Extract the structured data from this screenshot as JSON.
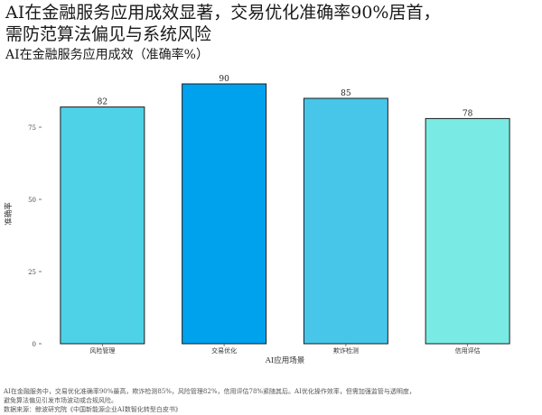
{
  "title": "AI在金融服务应用成效显著，交易优化准确率90%居首，\n需防范算法偏见与系统风险",
  "subtitle": "AI在金融服务应用成效（准确率%）",
  "chart_data": {
    "type": "bar",
    "categories": [
      "风险管理",
      "交易优化",
      "欺诈检测",
      "信用评估"
    ],
    "values": [
      82,
      90,
      85,
      78
    ],
    "colors": [
      "#4DD2E8",
      "#00A2EE",
      "#48C6EA",
      "#7AEAE4"
    ],
    "xlabel": "AI应用场景",
    "ylabel": "准确率",
    "ylim": [
      0,
      90
    ],
    "yticks": [
      0,
      25,
      50,
      75
    ],
    "grid": false,
    "legend": "none"
  },
  "footnote": {
    "line1": "AI在金融服务中，交易优化准确率90%最高，欺诈检测85%，风险管理82%，信用评估78%紧随其后。AI优化操作效率，但需加强监管与透明度，",
    "line2": "避免算法偏见引发市场波动或合规风险。",
    "source": "数据来源：鲸波研究院《中国新能源企业AI数智化转型白皮书》"
  }
}
